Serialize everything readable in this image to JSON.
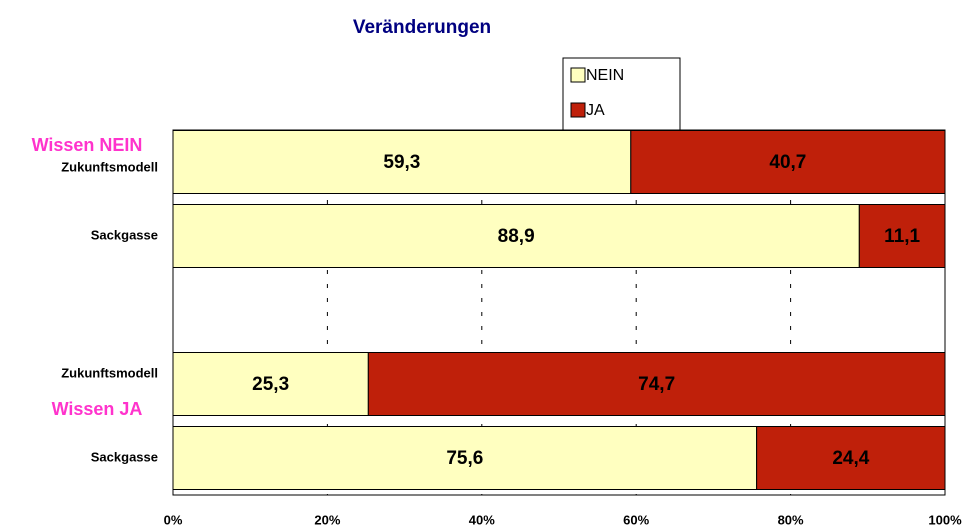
{
  "chart_data": {
    "type": "stacked_bar_horizontal",
    "title": "Veränderungen",
    "annotations": [
      "Wissen NEIN",
      "Wissen JA"
    ],
    "categories": [
      "Zukunftsmodell",
      "Sackgasse",
      null,
      "Zukunftsmodell",
      "Sackgasse"
    ],
    "series": [
      {
        "name": "NEIN",
        "color": "#ffffc0",
        "values": [
          59.3,
          88.9,
          null,
          25.3,
          75.6
        ],
        "value_labels": [
          "59,3",
          "88,9",
          null,
          "25,3",
          "75,6"
        ]
      },
      {
        "name": "JA",
        "color": "#bf200a",
        "values": [
          40.7,
          11.1,
          null,
          74.7,
          24.4
        ],
        "value_labels": [
          "40,7",
          "11,1",
          null,
          "74,7",
          "24,4"
        ]
      }
    ],
    "xlim": [
      0,
      100
    ],
    "xticks": [
      {
        "value": 0,
        "label": "0%"
      },
      {
        "value": 20,
        "label": "20%"
      },
      {
        "value": 40,
        "label": "40%"
      },
      {
        "value": 60,
        "label": "60%"
      },
      {
        "value": 80,
        "label": "80%"
      },
      {
        "value": 100,
        "label": "100%"
      }
    ],
    "grid": true,
    "legend": "top"
  }
}
